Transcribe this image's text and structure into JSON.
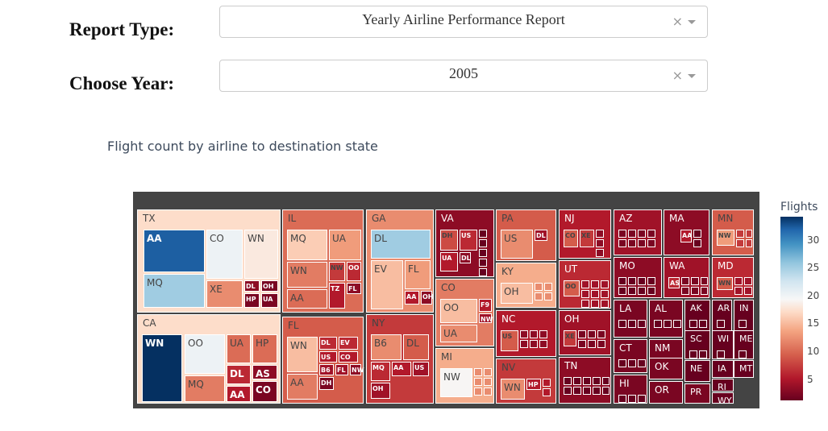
{
  "form": {
    "report_type_label": "Report Type:",
    "report_type_value": "Yearly Airline Performance Report",
    "year_label": "Choose Year:",
    "year_value": "2005",
    "clear_glyph": "×"
  },
  "chart_data": {
    "type": "treemap",
    "title": "Flight count by airline to destination state",
    "colorbar": {
      "title": "Flights",
      "ticks": [
        "30",
        "25",
        "20",
        "15",
        "10",
        "5"
      ],
      "range": [
        1,
        34
      ]
    },
    "colorscale": "RdBu",
    "states": [
      {
        "name": "TX",
        "value": 17,
        "airlines": [
          {
            "name": "AA",
            "value": 32
          },
          {
            "name": "MQ",
            "value": 25
          },
          {
            "name": "CO",
            "value": 20
          },
          {
            "name": "WN",
            "value": 18
          },
          {
            "name": "XE",
            "value": 12
          },
          {
            "name": "DL",
            "value": 3
          },
          {
            "name": "OH",
            "value": 2
          },
          {
            "name": "HP",
            "value": 2
          },
          {
            "name": "UA",
            "value": 2
          }
        ]
      },
      {
        "name": "CA",
        "value": 17,
        "airlines": [
          {
            "name": "WN",
            "value": 34
          },
          {
            "name": "OO",
            "value": 20
          },
          {
            "name": "MQ",
            "value": 11
          },
          {
            "name": "UA",
            "value": 10
          },
          {
            "name": "HP",
            "value": 10
          },
          {
            "name": "DL",
            "value": 6
          },
          {
            "name": "AA",
            "value": 5
          },
          {
            "name": "AS",
            "value": 3
          },
          {
            "name": "CO",
            "value": 2
          }
        ]
      },
      {
        "name": "IL",
        "value": 10,
        "airlines": [
          {
            "name": "MQ",
            "value": 16
          },
          {
            "name": "UA",
            "value": 13
          },
          {
            "name": "WN",
            "value": 11
          },
          {
            "name": "AA",
            "value": 10
          },
          {
            "name": "NW",
            "value": 7
          },
          {
            "name": "OO",
            "value": 6
          },
          {
            "name": "TZ",
            "value": 5
          },
          {
            "name": "FL",
            "value": 3
          }
        ]
      },
      {
        "name": "FL",
        "value": 9,
        "airlines": [
          {
            "name": "WN",
            "value": 15
          },
          {
            "name": "AA",
            "value": 11
          },
          {
            "name": "DL",
            "value": 6
          },
          {
            "name": "EV",
            "value": 6
          },
          {
            "name": "US",
            "value": 5
          },
          {
            "name": "CO",
            "value": 5
          },
          {
            "name": "B6",
            "value": 4
          },
          {
            "name": "FL",
            "value": 4
          },
          {
            "name": "NW",
            "value": 3
          },
          {
            "name": "DH",
            "value": 2
          }
        ]
      },
      {
        "name": "GA",
        "value": 12,
        "airlines": [
          {
            "name": "DL",
            "value": 25
          },
          {
            "name": "EV",
            "value": 15
          },
          {
            "name": "FL",
            "value": 13
          },
          {
            "name": "AA",
            "value": 5
          },
          {
            "name": "OH",
            "value": 3
          }
        ]
      },
      {
        "name": "NY",
        "value": 7,
        "airlines": [
          {
            "name": "B6",
            "value": 12
          },
          {
            "name": "DL",
            "value": 9
          },
          {
            "name": "MQ",
            "value": 6
          },
          {
            "name": "AA",
            "value": 5
          },
          {
            "name": "US",
            "value": 4
          },
          {
            "name": "OH",
            "value": 4
          }
        ]
      },
      {
        "name": "VA",
        "value": 3,
        "airlines": [
          {
            "name": "DH",
            "value": 8
          },
          {
            "name": "US",
            "value": 6
          },
          {
            "name": "UA",
            "value": 5
          },
          {
            "name": "DL",
            "value": 3
          }
        ]
      },
      {
        "name": "CO",
        "value": 11,
        "airlines": [
          {
            "name": "OO",
            "value": 15
          },
          {
            "name": "UA",
            "value": 12
          },
          {
            "name": "F9",
            "value": 5
          },
          {
            "name": "NW",
            "value": 4
          }
        ]
      },
      {
        "name": "MI",
        "value": 14,
        "airlines": [
          {
            "name": "NW",
            "value": 19
          }
        ]
      },
      {
        "name": "PA",
        "value": 9,
        "airlines": [
          {
            "name": "US",
            "value": 12
          },
          {
            "name": "DL",
            "value": 4
          }
        ]
      },
      {
        "name": "KY",
        "value": 14,
        "airlines": [
          {
            "name": "OH",
            "value": 15
          }
        ]
      },
      {
        "name": "NC",
        "value": 5,
        "airlines": [
          {
            "name": "US",
            "value": 9
          }
        ]
      },
      {
        "name": "NV",
        "value": 7,
        "airlines": [
          {
            "name": "WN",
            "value": 12
          },
          {
            "name": "HP",
            "value": 5
          }
        ]
      },
      {
        "name": "NJ",
        "value": 5,
        "airlines": [
          {
            "name": "CO",
            "value": 9
          },
          {
            "name": "XE",
            "value": 7
          }
        ]
      },
      {
        "name": "UT",
        "value": 6,
        "airlines": [
          {
            "name": "OO",
            "value": 9
          }
        ]
      },
      {
        "name": "OH",
        "value": 4,
        "airlines": [
          {
            "name": "XE",
            "value": 7
          }
        ]
      },
      {
        "name": "TN",
        "value": 3,
        "airlines": []
      },
      {
        "name": "AZ",
        "value": 4,
        "airlines": []
      },
      {
        "name": "MA",
        "value": 3,
        "airlines": [
          {
            "name": "AA",
            "value": 5
          }
        ]
      },
      {
        "name": "MN",
        "value": 9,
        "airlines": [
          {
            "name": "NW",
            "value": 13
          }
        ]
      },
      {
        "name": "MO",
        "value": 3,
        "airlines": []
      },
      {
        "name": "WA",
        "value": 4,
        "airlines": [
          {
            "name": "AS",
            "value": 6
          }
        ]
      },
      {
        "name": "MD",
        "value": 6,
        "airlines": [
          {
            "name": "WN",
            "value": 9
          }
        ]
      },
      {
        "name": "LA",
        "value": 2,
        "airlines": []
      },
      {
        "name": "AL",
        "value": 2,
        "airlines": []
      },
      {
        "name": "AK",
        "value": 1,
        "airlines": []
      },
      {
        "name": "AR",
        "value": 1,
        "airlines": []
      },
      {
        "name": "IN",
        "value": 1,
        "airlines": []
      },
      {
        "name": "CT",
        "value": 2,
        "airlines": []
      },
      {
        "name": "NM",
        "value": 2,
        "airlines": []
      },
      {
        "name": "SC",
        "value": 1,
        "airlines": []
      },
      {
        "name": "WI",
        "value": 1,
        "airlines": []
      },
      {
        "name": "ME",
        "value": 1,
        "airlines": []
      },
      {
        "name": "OK",
        "value": 2,
        "airlines": []
      },
      {
        "name": "NE",
        "value": 1,
        "airlines": []
      },
      {
        "name": "IA",
        "value": 1,
        "airlines": []
      },
      {
        "name": "MT",
        "value": 1,
        "airlines": []
      },
      {
        "name": "HI",
        "value": 2,
        "airlines": []
      },
      {
        "name": "OR",
        "value": 2,
        "airlines": []
      },
      {
        "name": "PR",
        "value": 2,
        "airlines": []
      },
      {
        "name": "RI",
        "value": 1,
        "airlines": []
      },
      {
        "name": "WY",
        "value": 1,
        "airlines": []
      }
    ]
  }
}
